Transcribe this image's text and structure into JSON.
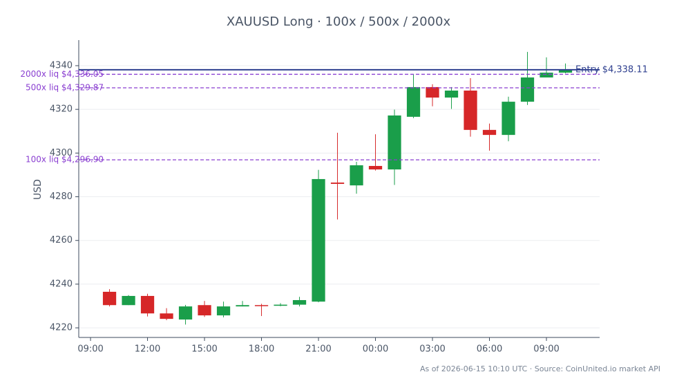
{
  "chart_data": {
    "type": "candlestick",
    "title": "XAUUSD Long · 100x / 500x / 2000x",
    "y_label": "USD",
    "footer": "As of 2026-06-15 10:10 UTC · Source: CoinUnited.io market API",
    "x": [
      1,
      2,
      3,
      4,
      5,
      6,
      7,
      8,
      9,
      10,
      11,
      12,
      13,
      14,
      15,
      16,
      17,
      18,
      19,
      20,
      21,
      22,
      23,
      24,
      25
    ],
    "open": [
      4236.5,
      4230.4,
      4234.6,
      4226.6,
      4223.8,
      4230.4,
      4225.7,
      4229.8,
      4230.4,
      4230.1,
      4230.6,
      4232.0,
      4286.5,
      4285.2,
      4294.1,
      4292.5,
      4316.6,
      4330.2,
      4325.4,
      4328.6,
      4310.6,
      4308.3,
      4323.5,
      4334.6,
      4336.8
    ],
    "high": [
      4237.7,
      4235.0,
      4235.6,
      4229.0,
      4230.5,
      4232.3,
      4232.0,
      4232.3,
      4231.0,
      4231.3,
      4234.2,
      4292.3,
      4309.3,
      4296.0,
      4308.6,
      4319.9,
      4336.2,
      4331.5,
      4330.2,
      4334.3,
      4313.5,
      4325.8,
      4346.3,
      4343.8,
      4341.0
    ],
    "low": [
      4229.8,
      4230.4,
      4225.2,
      4223.5,
      4221.5,
      4225.0,
      4224.8,
      4229.8,
      4225.4,
      4229.9,
      4229.8,
      4231.7,
      4269.6,
      4281.4,
      4292.0,
      4285.4,
      4316.0,
      4321.4,
      4320.2,
      4307.5,
      4301.1,
      4305.4,
      4322.0,
      4334.6,
      4336.5
    ],
    "close": [
      4230.4,
      4234.6,
      4226.6,
      4224.1,
      4229.8,
      4225.7,
      4229.8,
      4230.4,
      4230.1,
      4230.6,
      4232.7,
      4288.1,
      4285.9,
      4294.4,
      4292.5,
      4317.2,
      4330.2,
      4325.4,
      4328.6,
      4310.6,
      4308.3,
      4323.5,
      4334.6,
      4336.8,
      4338.4
    ],
    "up_color": "#1a9e4a",
    "down_color": "#d62728",
    "xlim": [
      -0.62,
      26.8
    ],
    "xticks": [
      {
        "value": 0,
        "label": "09:00"
      },
      {
        "value": 3,
        "label": "12:00"
      },
      {
        "value": 6,
        "label": "15:00"
      },
      {
        "value": 9,
        "label": "18:00"
      },
      {
        "value": 12,
        "label": "21:00"
      },
      {
        "value": 15,
        "label": "00:00"
      },
      {
        "value": 18,
        "label": "03:00"
      },
      {
        "value": 21,
        "label": "06:00"
      },
      {
        "value": 24,
        "label": "09:00"
      }
    ],
    "ylim": [
      4215.6,
      4351.7
    ],
    "yticks": [
      4220,
      4240,
      4260,
      4280,
      4300,
      4320,
      4340
    ],
    "grid": true,
    "hlines": [
      {
        "value": 4338.11,
        "label": "Entry $4,338.11",
        "color": "#2e3f8f",
        "style": "solid"
      },
      {
        "value": 4336.05,
        "label": "2000x liq $4,336.05",
        "color": "#8a3fd1",
        "style": "dashed"
      },
      {
        "value": 4329.87,
        "label": "500x liq $4,329.87",
        "color": "#8a3fd1",
        "style": "dashed"
      },
      {
        "value": 4296.9,
        "label": "100x liq $4,296.90",
        "color": "#8a3fd1",
        "style": "dashed"
      }
    ]
  }
}
